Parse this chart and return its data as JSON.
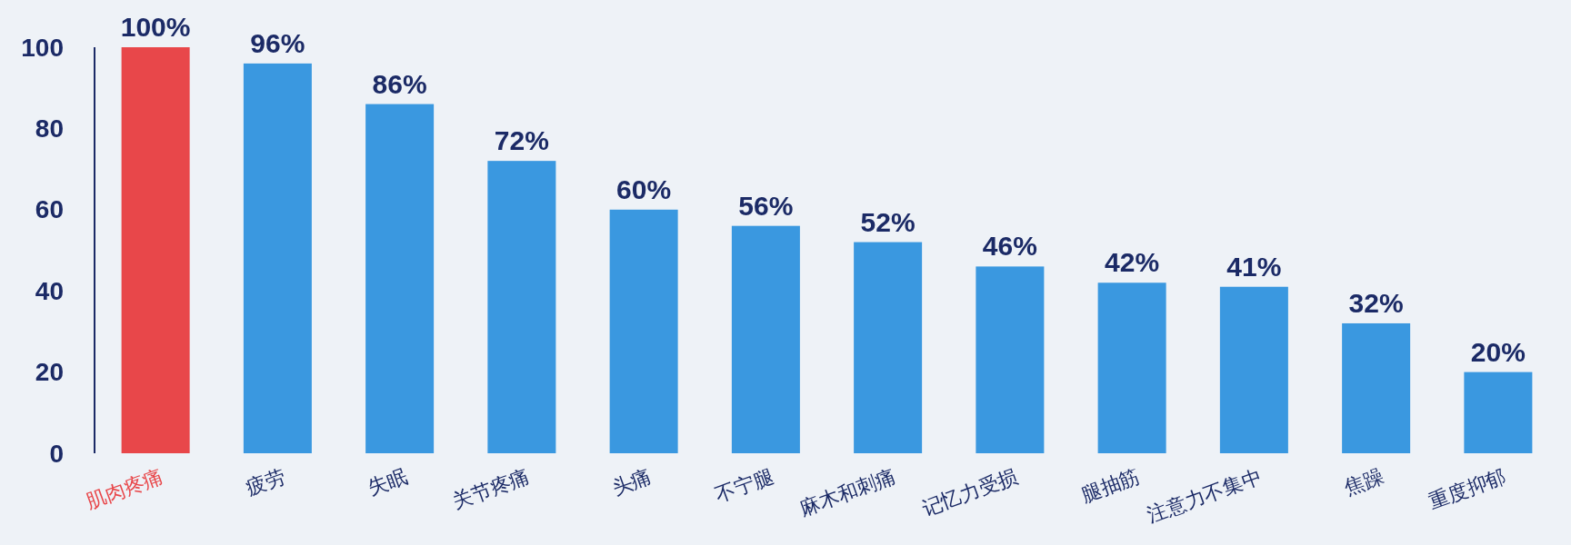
{
  "chart_data": {
    "type": "bar",
    "categories": [
      "肌肉疼痛",
      "疲劳",
      "失眠",
      "关节疼痛",
      "头痛",
      "不宁腿",
      "麻木和刺痛",
      "记忆力受损",
      "腿抽筋",
      "注意力不集中",
      "焦躁",
      "重度抑郁"
    ],
    "values": [
      100,
      96,
      86,
      72,
      60,
      56,
      52,
      46,
      42,
      41,
      32,
      20
    ],
    "colors": [
      "#e8474a",
      "#3a98e0",
      "#3a98e0",
      "#3a98e0",
      "#3a98e0",
      "#3a98e0",
      "#3a98e0",
      "#3a98e0",
      "#3a98e0",
      "#3a98e0",
      "#3a98e0",
      "#3a98e0"
    ],
    "value_labels": [
      "100%",
      "96%",
      "86%",
      "72%",
      "60%",
      "56%",
      "52%",
      "46%",
      "42%",
      "41%",
      "32%",
      "20%"
    ],
    "ylim": [
      0,
      100
    ],
    "yticks": [
      0,
      20,
      40,
      60,
      80,
      100
    ],
    "grid": false
  }
}
